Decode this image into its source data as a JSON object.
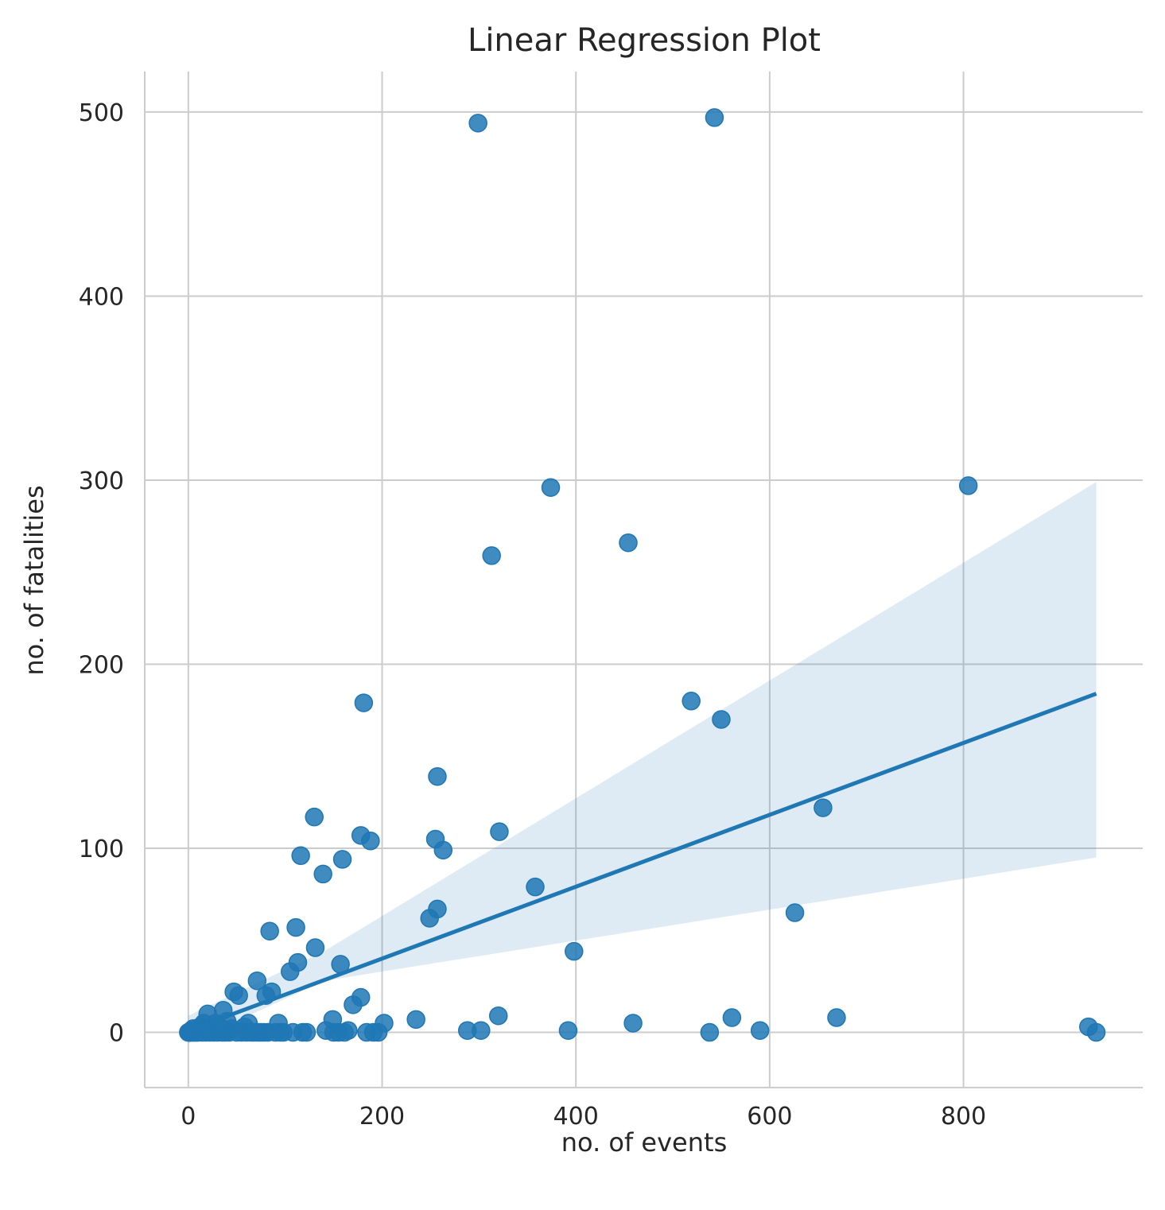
{
  "chart_data": {
    "type": "scatter",
    "title": "Linear Regression Plot",
    "xlabel": "no. of events",
    "ylabel": "no. of fatalities",
    "xlim": [
      -45,
      985
    ],
    "ylim": [
      -30,
      522
    ],
    "xticks": [
      0,
      200,
      400,
      600,
      800
    ],
    "yticks": [
      0,
      100,
      200,
      300,
      400,
      500
    ],
    "grid": true,
    "color": "#1f77b4",
    "points": [
      [
        0,
        0
      ],
      [
        1,
        0
      ],
      [
        2,
        0
      ],
      [
        3,
        1
      ],
      [
        4,
        0
      ],
      [
        5,
        2
      ],
      [
        6,
        0
      ],
      [
        7,
        0
      ],
      [
        8,
        1
      ],
      [
        9,
        0
      ],
      [
        10,
        0
      ],
      [
        12,
        3
      ],
      [
        14,
        0
      ],
      [
        15,
        2
      ],
      [
        16,
        5
      ],
      [
        18,
        0
      ],
      [
        20,
        10
      ],
      [
        22,
        0
      ],
      [
        24,
        2
      ],
      [
        26,
        0
      ],
      [
        28,
        5
      ],
      [
        30,
        0
      ],
      [
        32,
        3
      ],
      [
        35,
        0
      ],
      [
        36,
        12
      ],
      [
        38,
        0
      ],
      [
        40,
        6
      ],
      [
        42,
        0
      ],
      [
        45,
        2
      ],
      [
        47,
        22
      ],
      [
        50,
        0
      ],
      [
        52,
        20
      ],
      [
        55,
        0
      ],
      [
        58,
        3
      ],
      [
        60,
        0
      ],
      [
        62,
        5
      ],
      [
        65,
        0
      ],
      [
        68,
        0
      ],
      [
        71,
        28
      ],
      [
        72,
        0
      ],
      [
        75,
        0
      ],
      [
        78,
        0
      ],
      [
        80,
        20
      ],
      [
        82,
        0
      ],
      [
        84,
        55
      ],
      [
        86,
        22
      ],
      [
        90,
        0
      ],
      [
        93,
        5
      ],
      [
        95,
        0
      ],
      [
        98,
        0
      ],
      [
        105,
        33
      ],
      [
        108,
        0
      ],
      [
        111,
        57
      ],
      [
        113,
        38
      ],
      [
        116,
        96
      ],
      [
        118,
        0
      ],
      [
        122,
        0
      ],
      [
        130,
        117
      ],
      [
        131,
        46
      ],
      [
        139,
        86
      ],
      [
        142,
        1
      ],
      [
        149,
        7
      ],
      [
        150,
        0
      ],
      [
        155,
        0
      ],
      [
        157,
        37
      ],
      [
        159,
        94
      ],
      [
        161,
        0
      ],
      [
        165,
        1
      ],
      [
        170,
        15
      ],
      [
        178,
        19
      ],
      [
        178,
        107
      ],
      [
        181,
        179
      ],
      [
        184,
        0
      ],
      [
        188,
        104
      ],
      [
        191,
        0
      ],
      [
        196,
        0
      ],
      [
        202,
        5
      ],
      [
        235,
        7
      ],
      [
        249,
        62
      ],
      [
        255,
        105
      ],
      [
        257,
        67
      ],
      [
        257,
        139
      ],
      [
        263,
        99
      ],
      [
        288,
        1
      ],
      [
        299,
        494
      ],
      [
        302,
        1
      ],
      [
        313,
        259
      ],
      [
        320,
        9
      ],
      [
        321,
        109
      ],
      [
        358,
        79
      ],
      [
        374,
        296
      ],
      [
        392,
        1
      ],
      [
        398,
        44
      ],
      [
        454,
        266
      ],
      [
        459,
        5
      ],
      [
        519,
        180
      ],
      [
        538,
        0
      ],
      [
        543,
        497
      ],
      [
        550,
        170
      ],
      [
        561,
        8
      ],
      [
        590,
        1
      ],
      [
        626,
        65
      ],
      [
        655,
        122
      ],
      [
        669,
        8
      ],
      [
        805,
        297
      ],
      [
        929,
        3
      ],
      [
        937,
        0
      ]
    ],
    "regression": {
      "x": [
        0,
        937
      ],
      "y": [
        1.0,
        184.0
      ]
    },
    "ci": {
      "x": [
        0,
        140,
        937
      ],
      "lower": [
        -6,
        28,
        95
      ],
      "upper": [
        9,
        44,
        299
      ]
    }
  }
}
